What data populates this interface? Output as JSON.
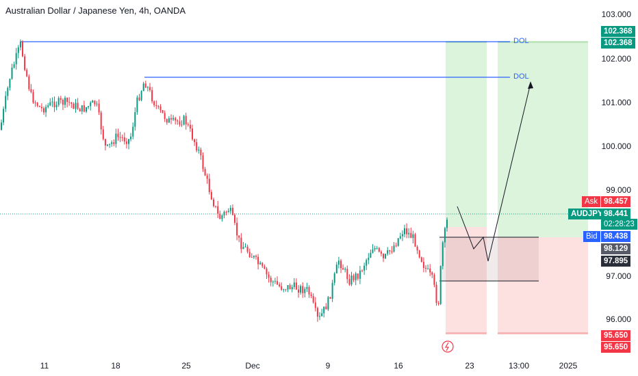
{
  "header": {
    "title": "Australian Dollar / Japanese Yen, 4h, OANDA"
  },
  "price_axis": {
    "ticks": [
      "103.000",
      "102.000",
      "101.000",
      "100.000",
      "99.000",
      "97.000",
      "96.000"
    ]
  },
  "tags": {
    "target_top": "102.368",
    "target_bottom": "102.368",
    "ask_label": "Ask",
    "ask_value": "98.457",
    "symbol": "AUDJPY",
    "last_value": "98.441",
    "countdown": "02:28:23",
    "bid_label": "Bid",
    "bid_value": "98.438",
    "level_1": "98.129",
    "level_2": "97.895",
    "stop_top": "95.650",
    "stop_bottom": "95.650"
  },
  "annotations": {
    "dol_1": "DOL",
    "dol_2": "DOL"
  },
  "time_axis": {
    "labels": [
      "11",
      "18",
      "25",
      "Dec",
      "9",
      "16",
      "23",
      "13:00",
      "2025"
    ]
  },
  "colors": {
    "up": "#089981",
    "down": "#f23645",
    "target_zone": "#dcf3dc",
    "stop_zone": "#fde0e0",
    "dol_line": "#2962ff",
    "ask": "#f23645",
    "bid": "#2962ff",
    "last": "#089981"
  }
}
